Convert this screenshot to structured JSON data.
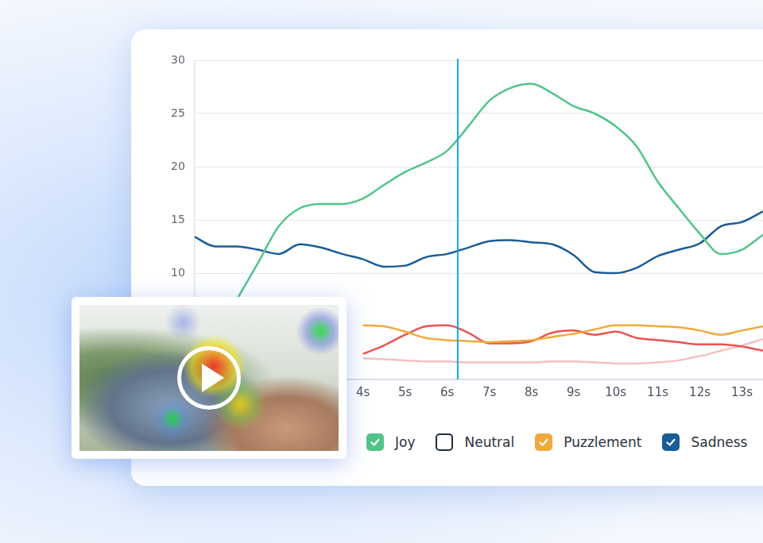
{
  "chart_data": {
    "type": "line",
    "x": [
      0,
      0.5,
      1,
      1.5,
      2,
      2.5,
      3,
      3.5,
      4,
      4.5,
      5,
      5.5,
      6,
      6.5,
      7,
      7.5,
      8,
      8.5,
      9,
      9.5,
      10,
      10.5,
      11,
      11.5,
      12,
      12.5,
      13,
      13.5
    ],
    "xlim": [
      0,
      13.5
    ],
    "xticks": [
      {
        "value": 4,
        "label": "4s"
      },
      {
        "value": 5,
        "label": "5s"
      },
      {
        "value": 6,
        "label": "6s"
      },
      {
        "value": 7,
        "label": "7s"
      },
      {
        "value": 8,
        "label": "8s"
      },
      {
        "value": 9,
        "label": "9s"
      },
      {
        "value": 10,
        "label": "10s"
      },
      {
        "value": 11,
        "label": "11s"
      },
      {
        "value": 12,
        "label": "12s"
      },
      {
        "value": 13,
        "label": "13s"
      }
    ],
    "ylim": [
      0,
      30
    ],
    "yticks": [
      10,
      15,
      20,
      25,
      30
    ],
    "grid": true,
    "legend": "bottom",
    "playhead": 6.25,
    "series": [
      {
        "name": "Joy",
        "color": "#52c48a",
        "values": [
          null,
          null,
          7.5,
          10.9,
          14.4,
          16.1,
          16.5,
          16.5,
          17.0,
          18.3,
          19.5,
          20.4,
          21.5,
          23.8,
          26.2,
          27.4,
          27.8,
          26.9,
          25.7,
          25.0,
          23.8,
          21.9,
          18.6,
          16.1,
          13.7,
          11.8,
          12.2,
          13.6
        ]
      },
      {
        "name": "Neutral",
        "color": "#1f2d3d",
        "values": [
          null,
          null,
          null,
          null,
          null,
          null,
          null,
          null,
          null,
          null,
          null,
          null,
          null,
          null,
          null,
          null,
          null,
          null,
          null,
          null,
          null,
          null,
          null,
          null,
          null,
          null,
          null,
          null
        ]
      },
      {
        "name": "Puzzlement",
        "color": "#f2a93b",
        "values": [
          null,
          null,
          null,
          null,
          null,
          null,
          null,
          null,
          5.1,
          5.0,
          4.5,
          3.9,
          3.7,
          3.6,
          3.5,
          3.6,
          3.7,
          4.0,
          4.3,
          4.7,
          5.1,
          5.1,
          5.0,
          4.9,
          4.6,
          4.2,
          4.6,
          5.0
        ]
      },
      {
        "name": "Sadness",
        "color": "#1a5c96",
        "values": [
          13.4,
          12.5,
          12.5,
          12.2,
          11.8,
          12.7,
          12.4,
          11.8,
          11.3,
          10.6,
          10.7,
          11.5,
          11.8,
          12.4,
          13.0,
          13.1,
          12.9,
          12.7,
          11.7,
          10.1,
          10.0,
          10.5,
          11.6,
          12.2,
          12.8,
          14.4,
          14.8,
          15.8
        ]
      },
      {
        "color": "#e8554e",
        "values": [
          null,
          null,
          null,
          null,
          null,
          null,
          null,
          null,
          2.4,
          3.2,
          4.2,
          5.0,
          5.1,
          4.4,
          3.4,
          3.4,
          3.6,
          4.4,
          4.6,
          4.2,
          4.5,
          3.9,
          3.7,
          3.5,
          3.3,
          3.3,
          3.1,
          2.7
        ]
      },
      {
        "color": "#f4c0c4",
        "values": [
          null,
          null,
          null,
          null,
          null,
          null,
          null,
          null,
          2.0,
          1.9,
          1.8,
          1.7,
          1.7,
          1.6,
          1.6,
          1.6,
          1.6,
          1.7,
          1.7,
          1.6,
          1.5,
          1.5,
          1.6,
          1.8,
          2.2,
          2.7,
          3.2,
          3.8
        ]
      }
    ]
  }
}
